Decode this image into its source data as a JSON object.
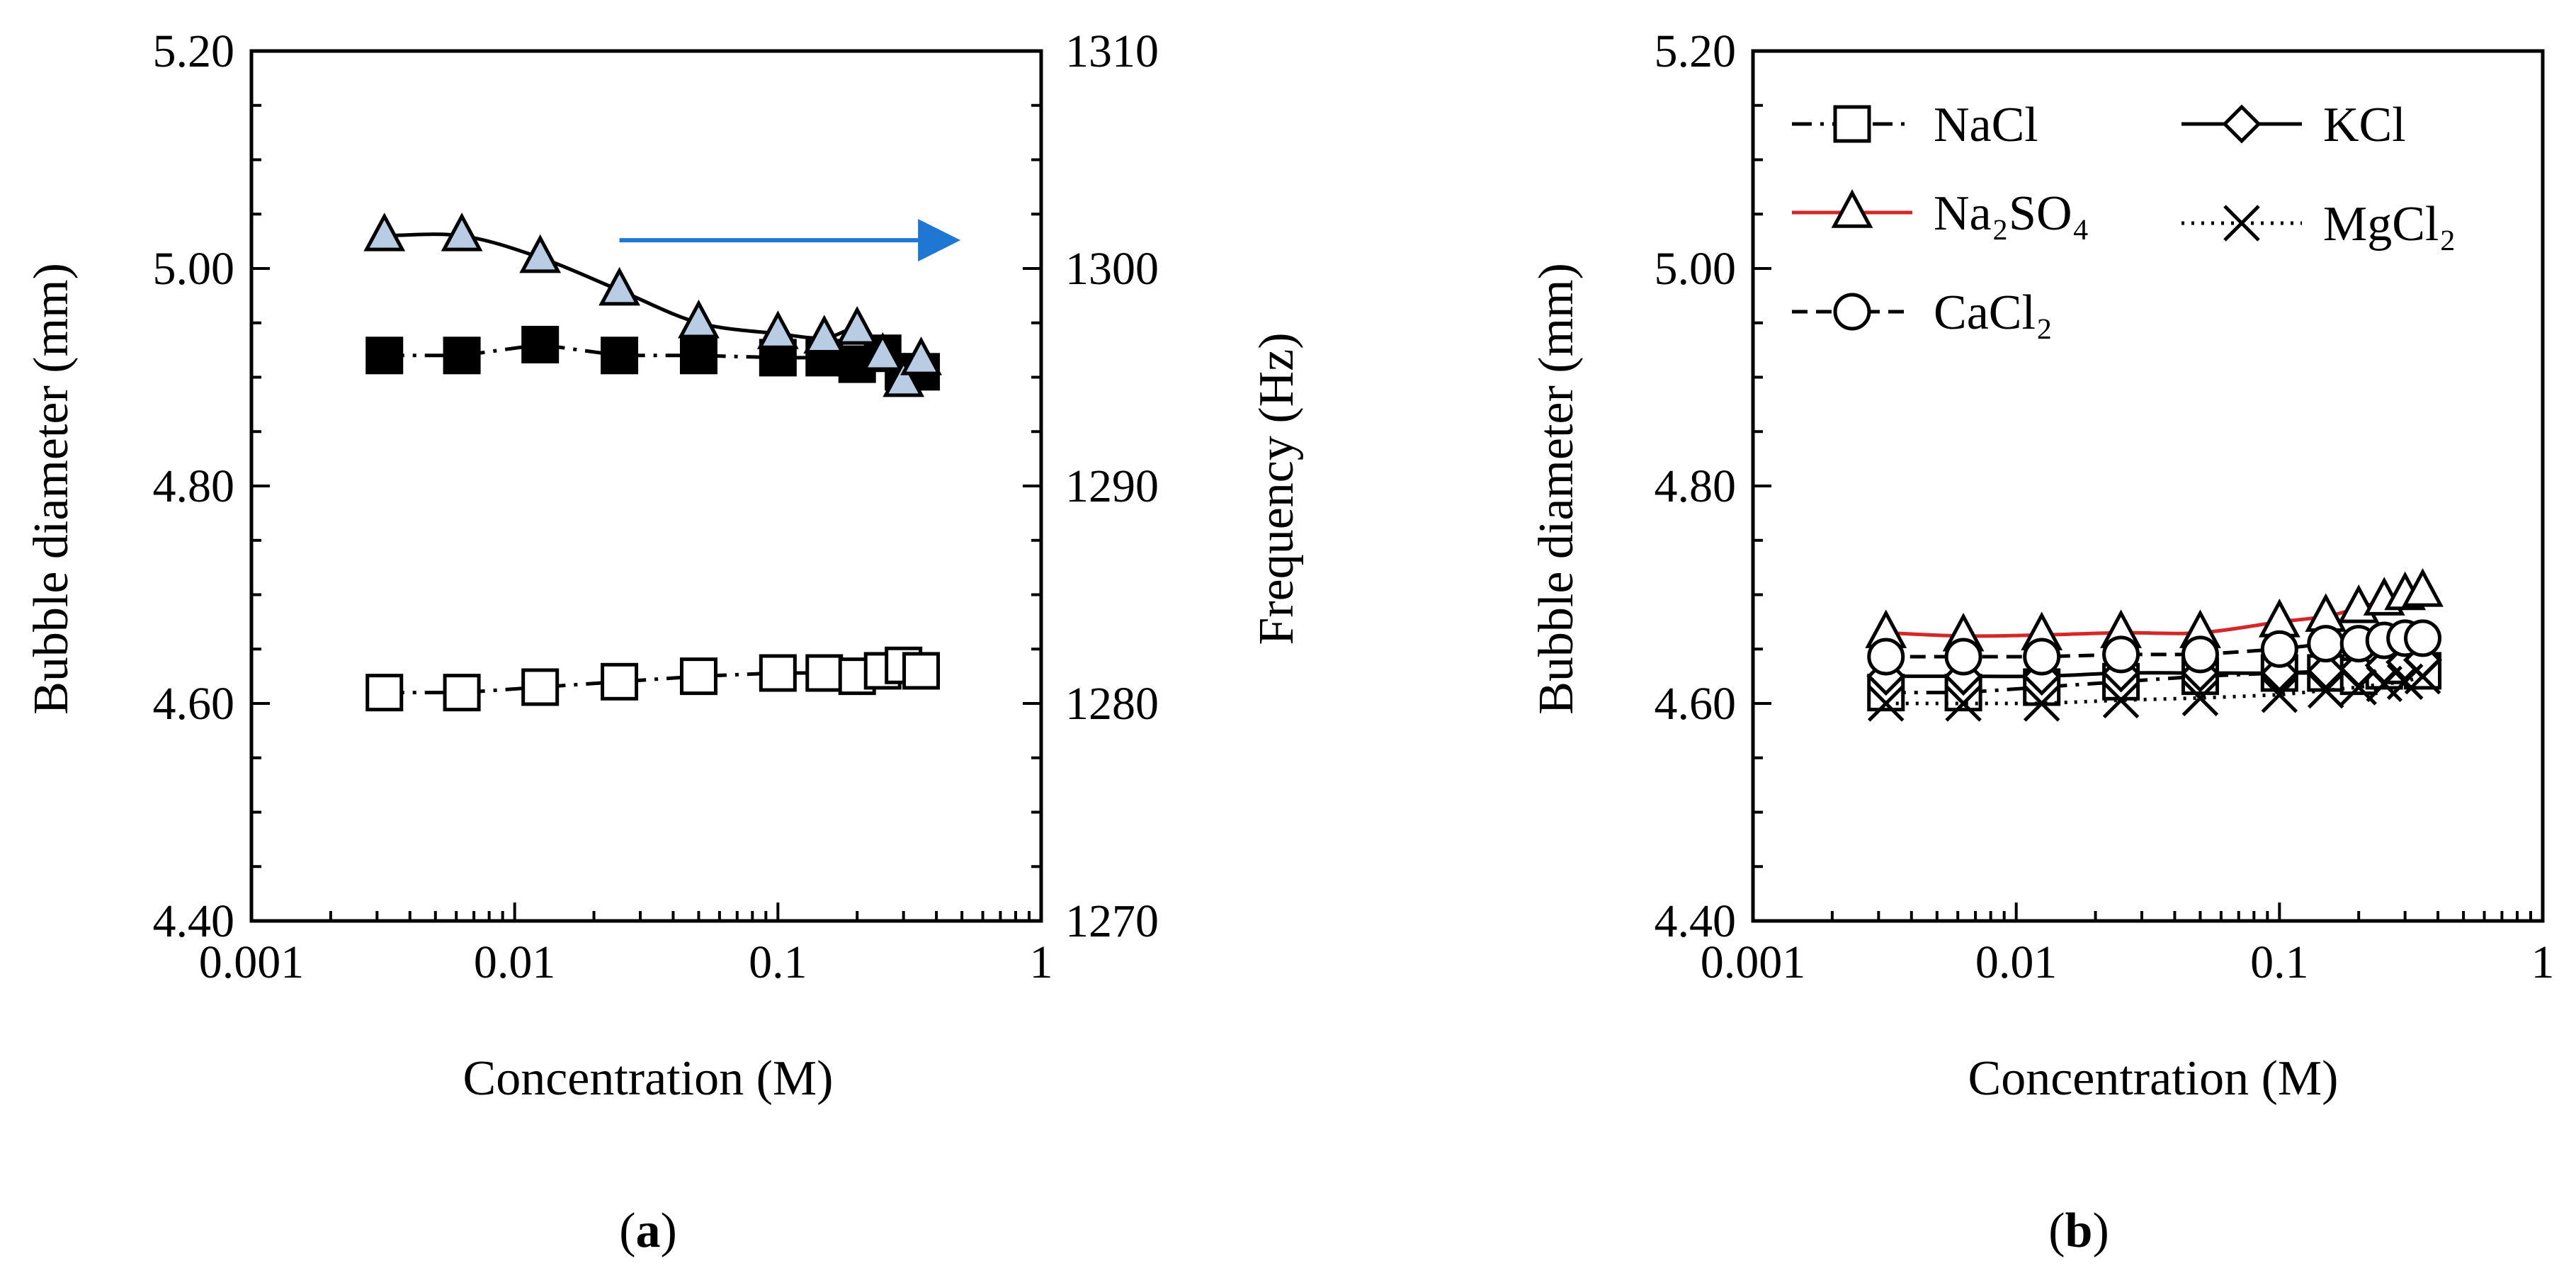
{
  "chart_data": [
    {
      "panel": "(a)",
      "type": "scatter",
      "xlabel": "Concentration (M)",
      "ylabel": "Bubble diameter (mm)",
      "y2label": "Frequency (Hz)",
      "xscale": "log",
      "xlim": [
        0.001,
        1
      ],
      "ylim": [
        4.4,
        5.2
      ],
      "y2lim": [
        1270,
        1310
      ],
      "xticks": [
        "0.001",
        "0.01",
        "0.1",
        "1"
      ],
      "yticks": [
        "4.40",
        "4.60",
        "4.80",
        "5.00",
        "5.20"
      ],
      "y2ticks": [
        "1270",
        "1280",
        "1290",
        "1300",
        "1310"
      ],
      "grid": false,
      "x": [
        0.0032,
        0.0063,
        0.0125,
        0.025,
        0.05,
        0.1,
        0.15,
        0.2,
        0.25,
        0.3,
        0.35
      ],
      "series": [
        {
          "axis": "left",
          "marker": "open-square",
          "line": "dash-dot",
          "color": "#000000",
          "values": [
            4.61,
            4.61,
            4.615,
            4.62,
            4.625,
            4.628,
            4.628,
            4.625,
            4.63,
            4.635,
            4.63
          ]
        },
        {
          "axis": "left",
          "marker": "filled-square",
          "line": "dash-dot",
          "color": "#000000",
          "values": [
            4.92,
            4.92,
            4.93,
            4.92,
            4.92,
            4.918,
            4.918,
            4.912,
            4.922,
            4.905,
            4.905
          ]
        },
        {
          "axis": "right",
          "marker": "triangle",
          "line": "solid-smooth",
          "color": "#b8cce4",
          "values": [
            1301.5,
            1301.5,
            1300.5,
            1299.0,
            1297.5,
            1297.0,
            1296.8,
            1297.2,
            1296.0,
            1294.8,
            1295.8
          ]
        }
      ],
      "annotation": {
        "type": "arrow",
        "direction": "right",
        "color": "#1f77d4",
        "x_from": 0.025,
        "x_to": 0.5,
        "y2": 1301.3
      }
    },
    {
      "panel": "(b)",
      "type": "scatter",
      "xlabel": "Concentration (M)",
      "ylabel": "Bubble diameter (mm)",
      "xscale": "log",
      "xlim": [
        0.001,
        1
      ],
      "ylim": [
        4.4,
        5.2
      ],
      "xticks": [
        "0.001",
        "0.01",
        "0.1",
        "1"
      ],
      "yticks": [
        "4.40",
        "4.60",
        "4.80",
        "5.00",
        "5.20"
      ],
      "grid": false,
      "legend_position": "top-inside",
      "x": [
        0.0032,
        0.0063,
        0.0125,
        0.025,
        0.05,
        0.1,
        0.15,
        0.2,
        0.25,
        0.3,
        0.35
      ],
      "series": [
        {
          "name": "NaCl",
          "marker": "open-square",
          "line": "dash-dot",
          "color": "#000000",
          "values": [
            4.61,
            4.61,
            4.615,
            4.62,
            4.625,
            4.628,
            4.628,
            4.625,
            4.63,
            4.635,
            4.63
          ]
        },
        {
          "name": "KCl",
          "marker": "diamond",
          "line": "solid",
          "color": "#000000",
          "values": [
            4.625,
            4.625,
            4.625,
            4.628,
            4.628,
            4.628,
            4.63,
            4.632,
            4.635,
            4.638,
            4.64
          ]
        },
        {
          "name": "Na₂SO₄",
          "marker": "triangle",
          "line": "solid-red",
          "color": "#d62728",
          "values": [
            4.665,
            4.662,
            4.663,
            4.665,
            4.665,
            4.675,
            4.68,
            4.688,
            4.695,
            4.7,
            4.703
          ]
        },
        {
          "name": "MgCl₂",
          "marker": "cross",
          "line": "dotted",
          "color": "#000000",
          "values": [
            4.6,
            4.6,
            4.6,
            4.603,
            4.605,
            4.608,
            4.612,
            4.615,
            4.618,
            4.62,
            4.625
          ]
        },
        {
          "name": "CaCl₂",
          "marker": "circle",
          "line": "dashed",
          "color": "#000000",
          "values": [
            4.643,
            4.643,
            4.643,
            4.645,
            4.645,
            4.65,
            4.655,
            4.655,
            4.658,
            4.66,
            4.66
          ]
        }
      ]
    }
  ]
}
